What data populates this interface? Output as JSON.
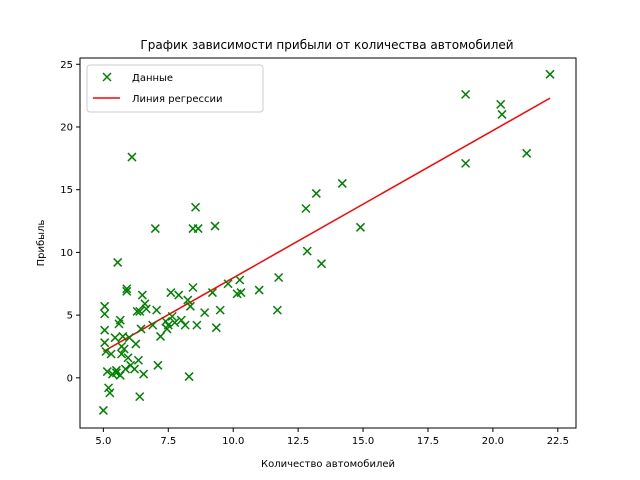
{
  "chart_data": {
    "type": "scatter",
    "title": "График зависимости прибыли от количества автомобилей",
    "xlabel": "Количество автомобилей",
    "ylabel": "Прибыль",
    "xlim": [
      4.1,
      23.2
    ],
    "ylim": [
      -4,
      25.5
    ],
    "xticks": [
      5.0,
      7.5,
      10.0,
      12.5,
      15.0,
      17.5,
      20.0,
      22.5
    ],
    "xtick_labels": [
      "5.0",
      "7.5",
      "10.0",
      "12.5",
      "15.0",
      "17.5",
      "20.0",
      "22.5"
    ],
    "yticks": [
      0,
      5,
      10,
      15,
      20,
      25
    ],
    "ytick_labels": [
      "0",
      "5",
      "10",
      "15",
      "20",
      "25"
    ],
    "grid": false,
    "legend_position": "top-left",
    "colors": {
      "scatter": "#008000",
      "line": "#ff0000"
    },
    "series": [
      {
        "name": "Данные",
        "kind": "scatter",
        "marker": "x",
        "points": [
          [
            5.0,
            -2.6
          ],
          [
            5.05,
            5.7
          ],
          [
            5.05,
            5.1
          ],
          [
            5.05,
            3.8
          ],
          [
            5.05,
            2.8
          ],
          [
            5.1,
            2.1
          ],
          [
            5.15,
            0.5
          ],
          [
            5.2,
            -0.8
          ],
          [
            5.25,
            -1.2
          ],
          [
            5.3,
            1.9
          ],
          [
            5.35,
            0.3
          ],
          [
            5.45,
            3.2
          ],
          [
            5.5,
            0.6
          ],
          [
            5.5,
            0.4
          ],
          [
            5.55,
            9.2
          ],
          [
            5.6,
            4.3
          ],
          [
            5.65,
            4.6
          ],
          [
            5.65,
            0.2
          ],
          [
            5.7,
            1.9
          ],
          [
            5.7,
            2.5
          ],
          [
            5.75,
            3.3
          ],
          [
            5.8,
            2.3
          ],
          [
            5.85,
            0.7
          ],
          [
            5.9,
            7.1
          ],
          [
            5.9,
            6.9
          ],
          [
            5.95,
            1.6
          ],
          [
            6.0,
            3.2
          ],
          [
            6.05,
            1.0
          ],
          [
            6.1,
            17.6
          ],
          [
            6.2,
            0.7
          ],
          [
            6.25,
            2.7
          ],
          [
            6.3,
            5.3
          ],
          [
            6.35,
            1.4
          ],
          [
            6.4,
            5.3
          ],
          [
            6.4,
            -1.5
          ],
          [
            6.45,
            3.9
          ],
          [
            6.5,
            6.6
          ],
          [
            6.55,
            0.3
          ],
          [
            6.6,
            5.9
          ],
          [
            6.65,
            5.5
          ],
          [
            6.9,
            4.2
          ],
          [
            7.0,
            11.9
          ],
          [
            7.05,
            5.4
          ],
          [
            7.1,
            1.0
          ],
          [
            7.2,
            3.3
          ],
          [
            7.4,
            4.5
          ],
          [
            7.45,
            3.9
          ],
          [
            7.5,
            4.2
          ],
          [
            7.6,
            6.8
          ],
          [
            7.65,
            4.9
          ],
          [
            7.75,
            4.4
          ],
          [
            7.9,
            6.6
          ],
          [
            8.0,
            4.6
          ],
          [
            8.15,
            4.2
          ],
          [
            8.25,
            6.2
          ],
          [
            8.3,
            0.1
          ],
          [
            8.35,
            5.7
          ],
          [
            8.45,
            7.2
          ],
          [
            8.45,
            11.9
          ],
          [
            8.55,
            13.6
          ],
          [
            8.6,
            4.2
          ],
          [
            8.65,
            11.9
          ],
          [
            8.9,
            5.2
          ],
          [
            9.2,
            6.8
          ],
          [
            9.3,
            12.1
          ],
          [
            9.35,
            4.0
          ],
          [
            9.5,
            5.4
          ],
          [
            9.8,
            7.5
          ],
          [
            10.15,
            6.7
          ],
          [
            10.25,
            7.8
          ],
          [
            10.3,
            6.8
          ],
          [
            11.0,
            7.0
          ],
          [
            11.7,
            5.4
          ],
          [
            11.75,
            8.0
          ],
          [
            12.8,
            13.5
          ],
          [
            12.85,
            10.1
          ],
          [
            13.2,
            14.7
          ],
          [
            13.4,
            9.1
          ],
          [
            14.2,
            15.5
          ],
          [
            14.9,
            12.0
          ],
          [
            18.95,
            22.6
          ],
          [
            18.95,
            17.1
          ],
          [
            20.3,
            21.8
          ],
          [
            20.35,
            21.0
          ],
          [
            21.3,
            17.9
          ],
          [
            22.2,
            24.2
          ]
        ]
      },
      {
        "name": "Линия регрессии",
        "kind": "line",
        "points": [
          [
            5.0,
            2.1
          ],
          [
            22.2,
            22.3
          ]
        ]
      }
    ]
  }
}
